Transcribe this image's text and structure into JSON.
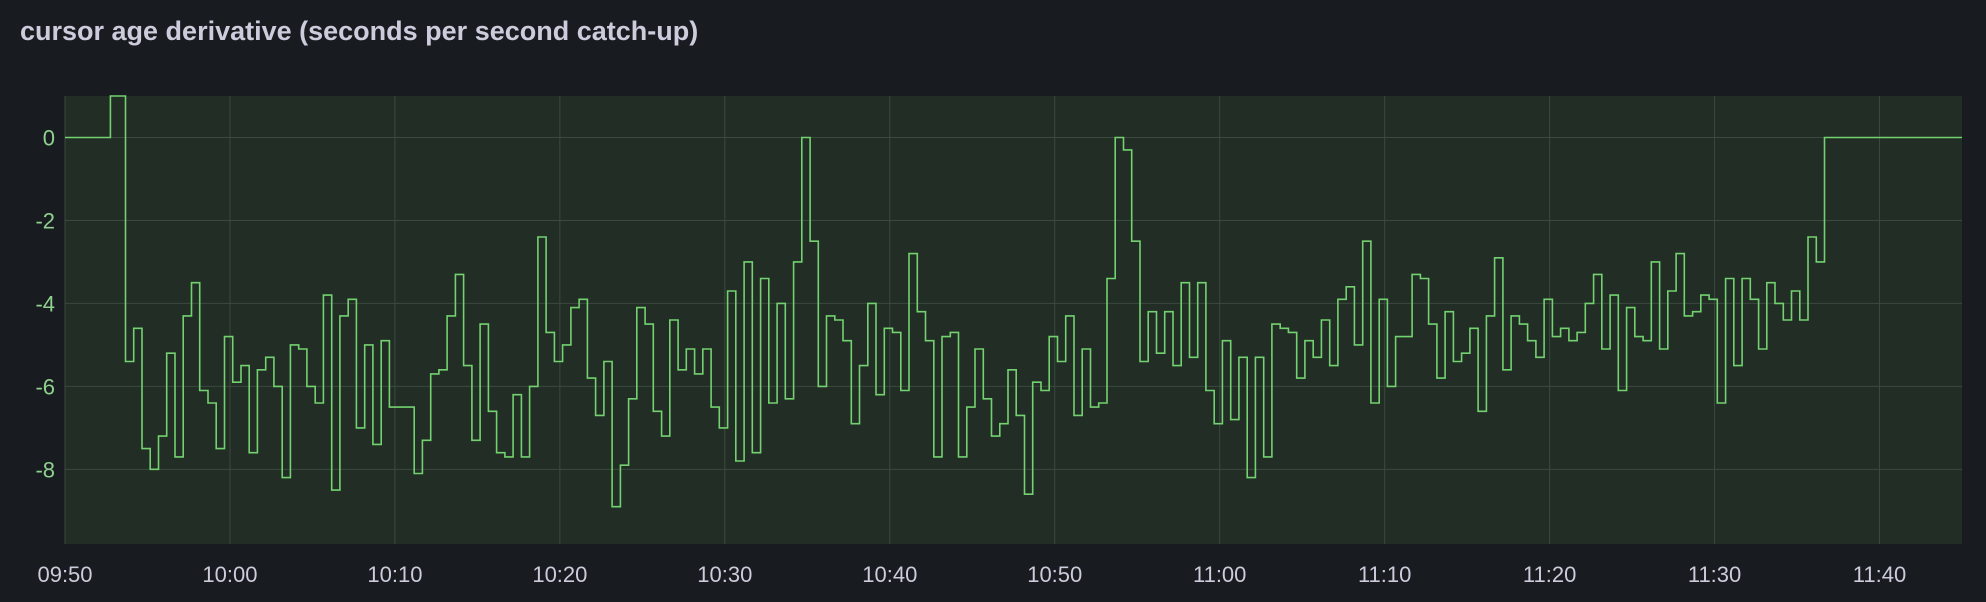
{
  "panel": {
    "title": "cursor age derivative (seconds per second catch-up)"
  },
  "colors": {
    "background": "#181b1f",
    "plot_area": "#222d26",
    "grid": "#3a4a3e",
    "series": "#73d26f",
    "title": "#ccccdc",
    "y_tick": "#8fd18f",
    "x_tick": "#ccccdc"
  },
  "chart_data": {
    "type": "line",
    "title": "cursor age derivative (seconds per second catch-up)",
    "xlabel": "",
    "ylabel": "",
    "x_range": [
      "09:50",
      "11:45"
    ],
    "ylim": [
      -9.8,
      1.0
    ],
    "x_ticks": [
      "09:50",
      "10:00",
      "10:10",
      "10:20",
      "10:30",
      "10:40",
      "10:50",
      "11:00",
      "11:10",
      "11:20",
      "11:30",
      "11:40"
    ],
    "y_ticks": [
      0,
      -2,
      -4,
      -6,
      -8
    ],
    "grid": true,
    "legend": "none",
    "interpolation": "step",
    "series": [
      {
        "values": [
          [
            "09:50:00",
            0
          ],
          [
            "09:52:45",
            0
          ],
          [
            "09:52:45",
            1.0
          ],
          [
            "09:53:30",
            1.0
          ],
          [
            "09:53:40",
            -5.4
          ],
          [
            "09:54:10",
            -4.6
          ],
          [
            "09:54:40",
            -7.5
          ],
          [
            "09:55:10",
            -8.0
          ],
          [
            "09:55:40",
            -7.2
          ],
          [
            "09:56:10",
            -5.2
          ],
          [
            "09:56:40",
            -7.7
          ],
          [
            "09:57:10",
            -4.3
          ],
          [
            "09:57:40",
            -3.5
          ],
          [
            "09:58:10",
            -6.1
          ],
          [
            "09:58:40",
            -6.4
          ],
          [
            "09:59:10",
            -7.5
          ],
          [
            "09:59:40",
            -4.8
          ],
          [
            "10:00:10",
            -5.9
          ],
          [
            "10:00:40",
            -5.5
          ],
          [
            "10:01:10",
            -7.6
          ],
          [
            "10:01:40",
            -5.6
          ],
          [
            "10:02:10",
            -5.3
          ],
          [
            "10:02:40",
            -6.0
          ],
          [
            "10:03:10",
            -8.2
          ],
          [
            "10:03:40",
            -5.0
          ],
          [
            "10:04:10",
            -5.1
          ],
          [
            "10:04:40",
            -6.0
          ],
          [
            "10:05:10",
            -6.4
          ],
          [
            "10:05:40",
            -3.8
          ],
          [
            "10:06:10",
            -8.5
          ],
          [
            "10:06:40",
            -4.3
          ],
          [
            "10:07:10",
            -3.9
          ],
          [
            "10:07:40",
            -7.0
          ],
          [
            "10:08:10",
            -5.0
          ],
          [
            "10:08:40",
            -7.4
          ],
          [
            "10:09:10",
            -4.9
          ],
          [
            "10:09:40",
            -6.5
          ],
          [
            "10:10:40",
            -6.5
          ],
          [
            "10:11:10",
            -8.1
          ],
          [
            "10:11:40",
            -7.3
          ],
          [
            "10:12:10",
            -5.7
          ],
          [
            "10:12:40",
            -5.6
          ],
          [
            "10:13:10",
            -4.3
          ],
          [
            "10:13:40",
            -3.3
          ],
          [
            "10:14:10",
            -5.5
          ],
          [
            "10:14:40",
            -7.3
          ],
          [
            "10:15:10",
            -4.5
          ],
          [
            "10:15:40",
            -6.6
          ],
          [
            "10:16:10",
            -7.6
          ],
          [
            "10:16:40",
            -7.7
          ],
          [
            "10:17:10",
            -6.2
          ],
          [
            "10:17:40",
            -7.7
          ],
          [
            "10:18:10",
            -6.0
          ],
          [
            "10:18:40",
            -2.4
          ],
          [
            "10:19:10",
            -4.7
          ],
          [
            "10:19:40",
            -5.4
          ],
          [
            "10:20:10",
            -5.0
          ],
          [
            "10:20:40",
            -4.1
          ],
          [
            "10:21:10",
            -3.9
          ],
          [
            "10:21:40",
            -5.8
          ],
          [
            "10:22:10",
            -6.7
          ],
          [
            "10:22:40",
            -5.4
          ],
          [
            "10:23:10",
            -8.9
          ],
          [
            "10:23:40",
            -7.9
          ],
          [
            "10:24:10",
            -6.3
          ],
          [
            "10:24:40",
            -4.1
          ],
          [
            "10:25:10",
            -4.5
          ],
          [
            "10:25:40",
            -6.6
          ],
          [
            "10:26:10",
            -7.2
          ],
          [
            "10:26:40",
            -4.4
          ],
          [
            "10:27:10",
            -5.6
          ],
          [
            "10:27:40",
            -5.1
          ],
          [
            "10:28:10",
            -5.7
          ],
          [
            "10:28:40",
            -5.1
          ],
          [
            "10:29:10",
            -6.5
          ],
          [
            "10:29:40",
            -7.0
          ],
          [
            "10:30:10",
            -3.7
          ],
          [
            "10:30:40",
            -7.8
          ],
          [
            "10:31:10",
            -3.0
          ],
          [
            "10:31:40",
            -7.6
          ],
          [
            "10:32:10",
            -3.4
          ],
          [
            "10:32:40",
            -6.4
          ],
          [
            "10:33:10",
            -4.0
          ],
          [
            "10:33:40",
            -6.3
          ],
          [
            "10:34:10",
            -3.0
          ],
          [
            "10:34:40",
            0
          ],
          [
            "10:35:10",
            -2.5
          ],
          [
            "10:35:40",
            -6.0
          ],
          [
            "10:36:10",
            -4.3
          ],
          [
            "10:36:40",
            -4.4
          ],
          [
            "10:37:10",
            -4.9
          ],
          [
            "10:37:40",
            -6.9
          ],
          [
            "10:38:10",
            -5.5
          ],
          [
            "10:38:40",
            -4.0
          ],
          [
            "10:39:10",
            -6.2
          ],
          [
            "10:39:40",
            -4.6
          ],
          [
            "10:40:10",
            -4.7
          ],
          [
            "10:40:40",
            -6.1
          ],
          [
            "10:41:10",
            -2.8
          ],
          [
            "10:41:40",
            -4.2
          ],
          [
            "10:42:10",
            -4.9
          ],
          [
            "10:42:40",
            -7.7
          ],
          [
            "10:43:10",
            -4.8
          ],
          [
            "10:43:40",
            -4.7
          ],
          [
            "10:44:10",
            -7.7
          ],
          [
            "10:44:40",
            -6.5
          ],
          [
            "10:45:10",
            -5.1
          ],
          [
            "10:45:40",
            -6.3
          ],
          [
            "10:46:10",
            -7.2
          ],
          [
            "10:46:40",
            -6.9
          ],
          [
            "10:47:10",
            -5.6
          ],
          [
            "10:47:40",
            -6.7
          ],
          [
            "10:48:10",
            -8.6
          ],
          [
            "10:48:40",
            -5.9
          ],
          [
            "10:49:10",
            -6.1
          ],
          [
            "10:49:40",
            -4.8
          ],
          [
            "10:50:10",
            -5.4
          ],
          [
            "10:50:40",
            -4.3
          ],
          [
            "10:51:10",
            -6.7
          ],
          [
            "10:51:40",
            -5.1
          ],
          [
            "10:52:10",
            -6.5
          ],
          [
            "10:52:40",
            -6.4
          ],
          [
            "10:53:10",
            -3.4
          ],
          [
            "10:53:40",
            0
          ],
          [
            "10:54:10",
            -0.3
          ],
          [
            "10:54:40",
            -2.5
          ],
          [
            "10:55:10",
            -5.4
          ],
          [
            "10:55:40",
            -4.2
          ],
          [
            "10:56:10",
            -5.2
          ],
          [
            "10:56:40",
            -4.2
          ],
          [
            "10:57:10",
            -5.5
          ],
          [
            "10:57:40",
            -3.5
          ],
          [
            "10:58:10",
            -5.3
          ],
          [
            "10:58:40",
            -3.5
          ],
          [
            "10:59:10",
            -6.1
          ],
          [
            "10:59:40",
            -6.9
          ],
          [
            "11:00:10",
            -4.9
          ],
          [
            "11:00:40",
            -6.8
          ],
          [
            "11:01:10",
            -5.3
          ],
          [
            "11:01:40",
            -8.2
          ],
          [
            "11:02:10",
            -5.3
          ],
          [
            "11:02:40",
            -7.7
          ],
          [
            "11:03:10",
            -4.5
          ],
          [
            "11:03:40",
            -4.6
          ],
          [
            "11:04:10",
            -4.7
          ],
          [
            "11:04:40",
            -5.8
          ],
          [
            "11:05:10",
            -4.9
          ],
          [
            "11:05:40",
            -5.3
          ],
          [
            "11:06:10",
            -4.4
          ],
          [
            "11:06:40",
            -5.5
          ],
          [
            "11:07:10",
            -3.9
          ],
          [
            "11:07:40",
            -3.6
          ],
          [
            "11:08:10",
            -5.0
          ],
          [
            "11:08:40",
            -2.5
          ],
          [
            "11:09:10",
            -6.4
          ],
          [
            "11:09:40",
            -3.9
          ],
          [
            "11:10:10",
            -6.0
          ],
          [
            "11:10:40",
            -4.8
          ],
          [
            "11:11:10",
            -4.8
          ],
          [
            "11:11:40",
            -3.3
          ],
          [
            "11:12:10",
            -3.4
          ],
          [
            "11:12:40",
            -4.5
          ],
          [
            "11:13:10",
            -5.8
          ],
          [
            "11:13:40",
            -4.2
          ],
          [
            "11:14:10",
            -5.4
          ],
          [
            "11:14:40",
            -5.2
          ],
          [
            "11:15:10",
            -4.6
          ],
          [
            "11:15:40",
            -6.6
          ],
          [
            "11:16:10",
            -4.3
          ],
          [
            "11:16:40",
            -2.9
          ],
          [
            "11:17:10",
            -5.6
          ],
          [
            "11:17:40",
            -4.3
          ],
          [
            "11:18:10",
            -4.5
          ],
          [
            "11:18:40",
            -4.9
          ],
          [
            "11:19:10",
            -5.3
          ],
          [
            "11:19:40",
            -3.9
          ],
          [
            "11:20:10",
            -4.8
          ],
          [
            "11:20:40",
            -4.6
          ],
          [
            "11:21:10",
            -4.9
          ],
          [
            "11:21:40",
            -4.7
          ],
          [
            "11:22:10",
            -4.0
          ],
          [
            "11:22:40",
            -3.3
          ],
          [
            "11:23:10",
            -5.1
          ],
          [
            "11:23:40",
            -3.8
          ],
          [
            "11:24:10",
            -6.1
          ],
          [
            "11:24:40",
            -4.1
          ],
          [
            "11:25:10",
            -4.8
          ],
          [
            "11:25:40",
            -4.9
          ],
          [
            "11:26:10",
            -3.0
          ],
          [
            "11:26:40",
            -5.1
          ],
          [
            "11:27:10",
            -3.7
          ],
          [
            "11:27:40",
            -2.8
          ],
          [
            "11:28:10",
            -4.3
          ],
          [
            "11:28:40",
            -4.2
          ],
          [
            "11:29:10",
            -3.8
          ],
          [
            "11:29:40",
            -3.9
          ],
          [
            "11:30:10",
            -6.4
          ],
          [
            "11:30:40",
            -3.4
          ],
          [
            "11:31:10",
            -5.5
          ],
          [
            "11:31:40",
            -3.4
          ],
          [
            "11:32:10",
            -3.9
          ],
          [
            "11:32:40",
            -5.1
          ],
          [
            "11:33:10",
            -3.5
          ],
          [
            "11:33:40",
            -4.0
          ],
          [
            "11:34:10",
            -4.4
          ],
          [
            "11:34:40",
            -3.7
          ],
          [
            "11:35:10",
            -4.4
          ],
          [
            "11:35:40",
            -2.4
          ],
          [
            "11:36:10",
            -3.0
          ],
          [
            "11:36:40",
            0
          ],
          [
            "11:45:00",
            0
          ]
        ]
      }
    ]
  }
}
